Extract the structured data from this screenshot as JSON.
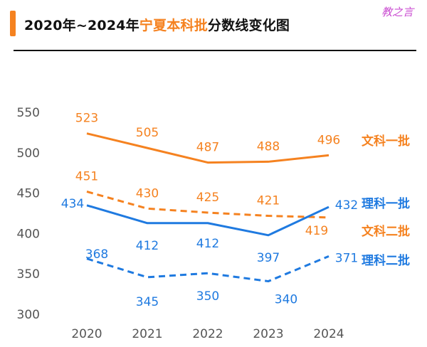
{
  "header": {
    "title_prefix": "2020年~2024年",
    "title_highlight": "宁夏本科批",
    "title_suffix": "分数线变化图",
    "watermark": "教之言"
  },
  "chart_data": {
    "type": "line",
    "title": "2020年~2024年宁夏本科批分数线变化图",
    "categories": [
      "2020",
      "2021",
      "2022",
      "2023",
      "2024"
    ],
    "ylim": [
      300,
      550
    ],
    "yticks": [
      300,
      350,
      400,
      450,
      500,
      550
    ],
    "grid": false,
    "series": [
      {
        "name": "文科一批",
        "values": [
          523,
          505,
          487,
          488,
          496
        ],
        "color": "#f58220",
        "dash": false
      },
      {
        "name": "文科二批",
        "values": [
          451,
          430,
          425,
          421,
          419
        ],
        "color": "#f58220",
        "dash": true
      },
      {
        "name": "理科一批",
        "values": [
          434,
          412,
          412,
          397,
          432
        ],
        "color": "#1f7ae0",
        "dash": false
      },
      {
        "name": "理科二批",
        "values": [
          368,
          345,
          350,
          340,
          371
        ],
        "color": "#1f7ae0",
        "dash": true
      }
    ]
  }
}
